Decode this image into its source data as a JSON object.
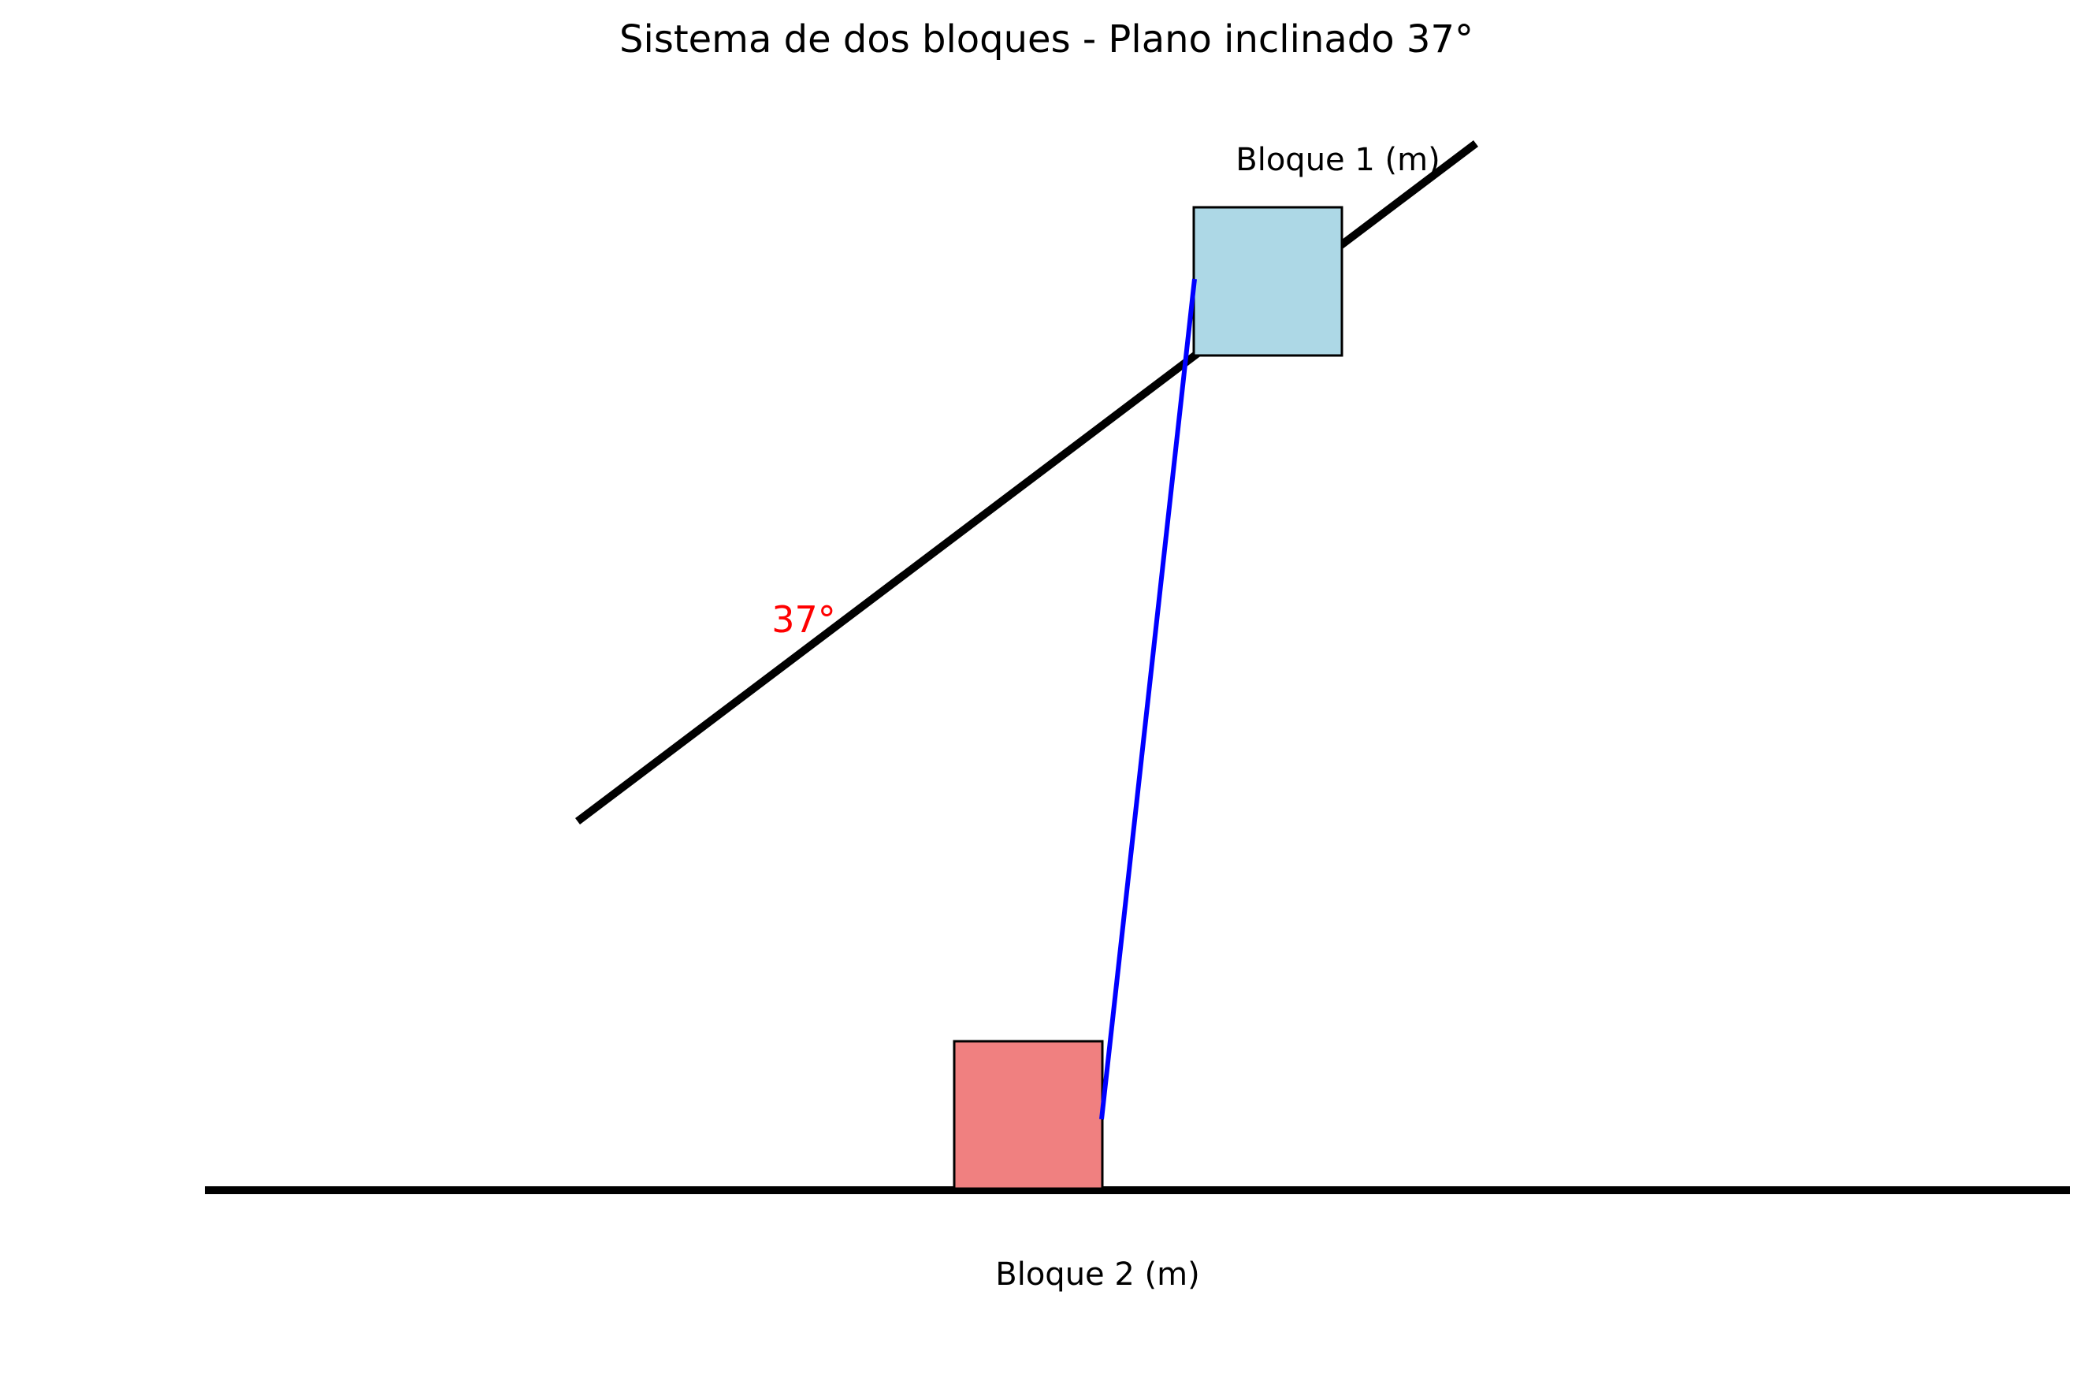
{
  "title": "Sistema de dos bloques - Plano inclinado 37°",
  "angle_label": "37°",
  "block1": {
    "label": "Bloque 1 (m)",
    "color": "#add8e6"
  },
  "block2": {
    "label": "Bloque 2 (m)",
    "color": "#f08080"
  },
  "rope_color": "#0000ff",
  "angle_color": "#ff0000"
}
